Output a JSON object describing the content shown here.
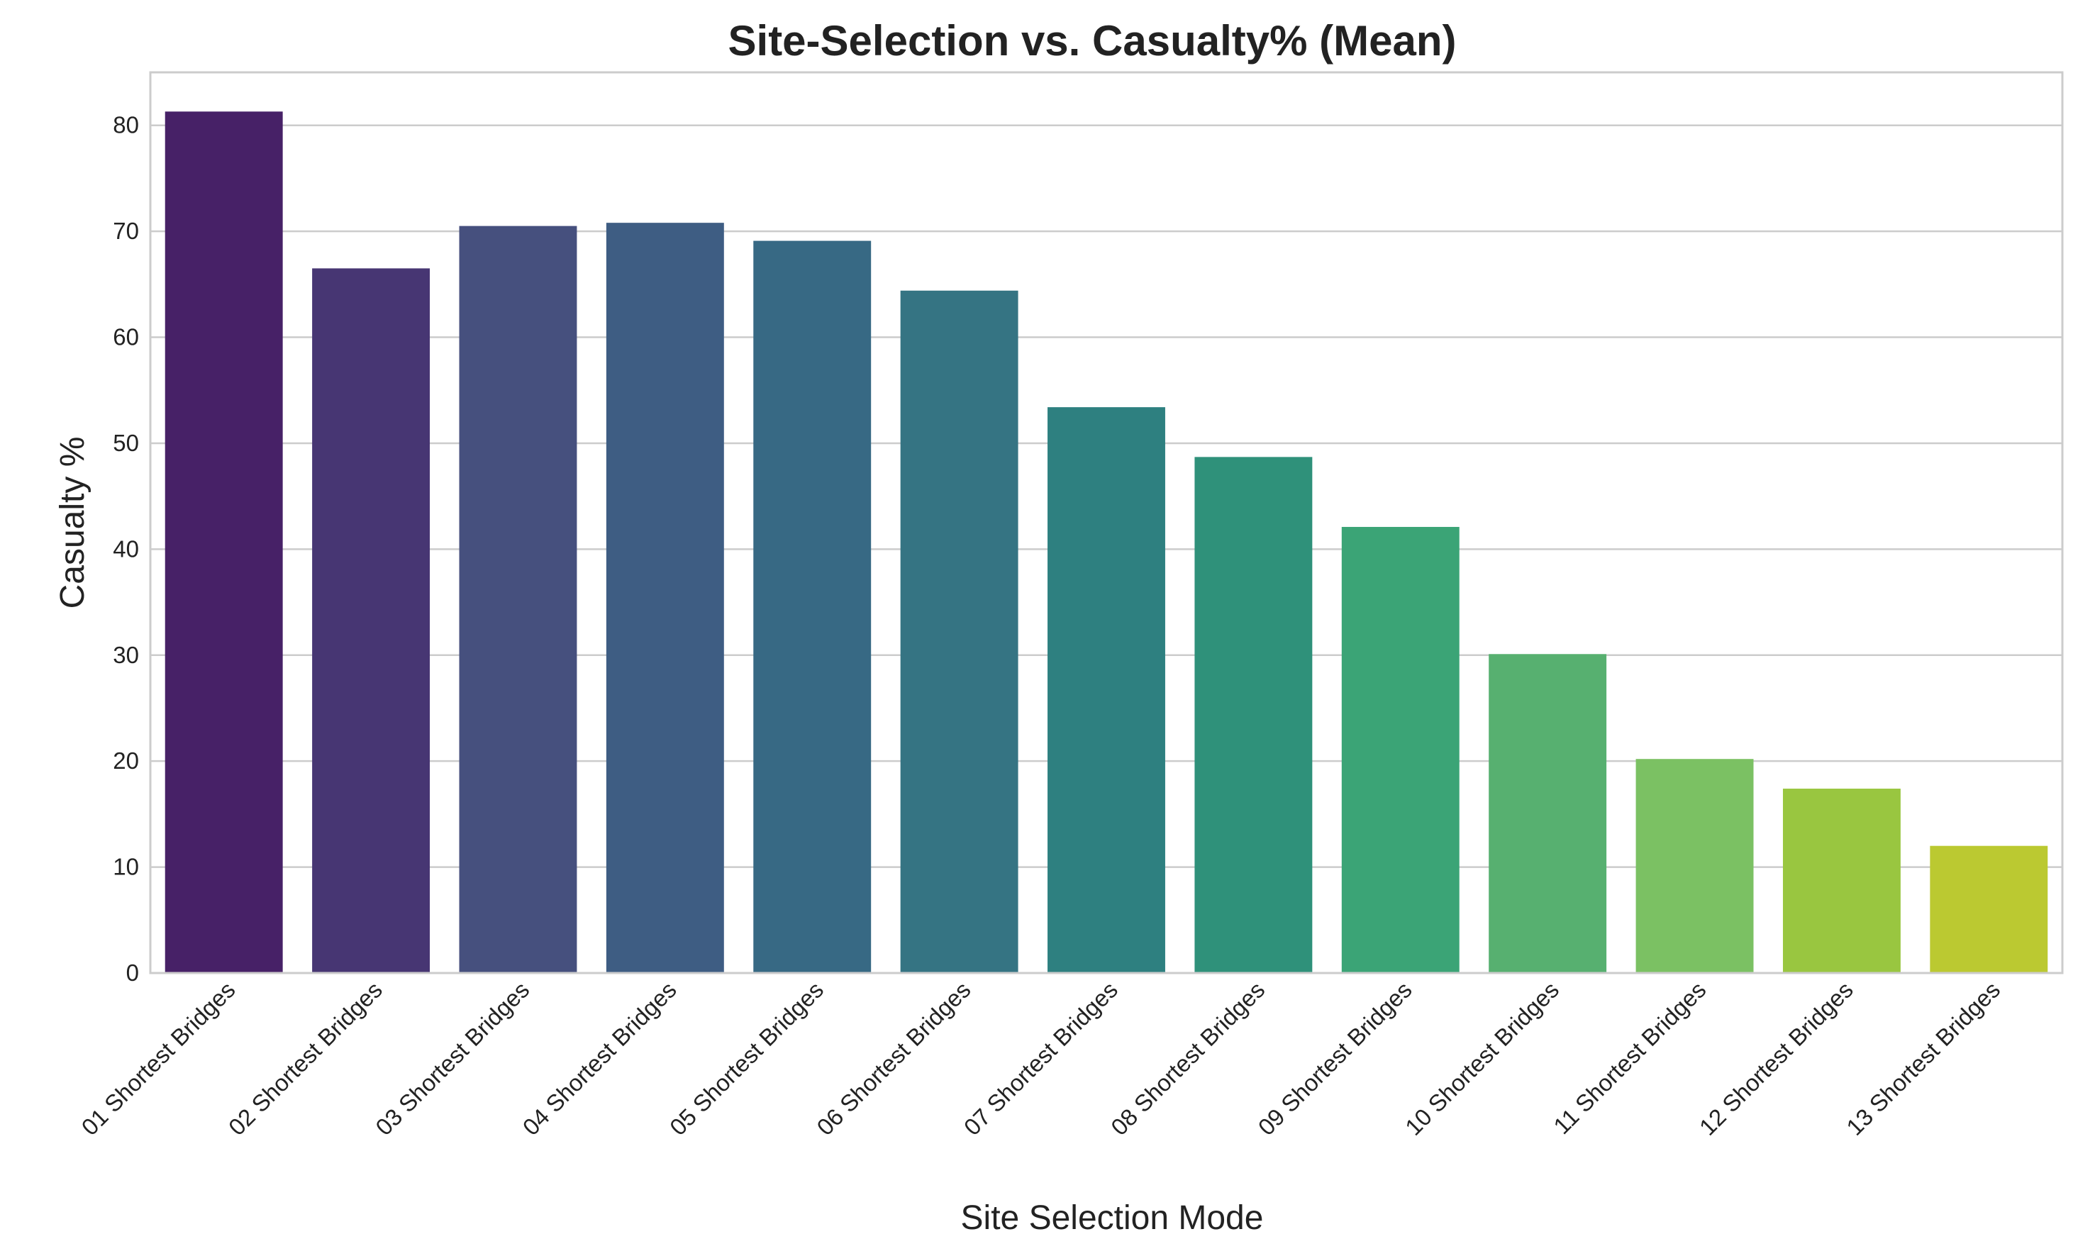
{
  "chart_data": {
    "type": "bar",
    "title": "Site-Selection vs. Casualty% (Mean)",
    "xlabel": "Site Selection Mode",
    "ylabel": "Casualty %",
    "ylim": [
      0,
      85
    ],
    "yticks": [
      0,
      10,
      20,
      30,
      40,
      50,
      60,
      70,
      80
    ],
    "grid": "horizontal",
    "categories": [
      "01 Shortest Bridges",
      "02 Shortest Bridges",
      "03 Shortest Bridges",
      "04 Shortest Bridges",
      "05 Shortest Bridges",
      "06 Shortest Bridges",
      "07 Shortest Bridges",
      "08 Shortest Bridges",
      "09 Shortest Bridges",
      "10 Shortest Bridges",
      "11 Shortest Bridges",
      "12 Shortest Bridges",
      "13 Shortest Bridges"
    ],
    "values": [
      81.3,
      66.5,
      70.5,
      70.8,
      69.1,
      64.4,
      53.4,
      48.7,
      42.1,
      30.1,
      20.2,
      17.4,
      12.0
    ],
    "colors": [
      "#472167",
      "#473673",
      "#46507e",
      "#3e5d83",
      "#376984",
      "#357483",
      "#2e8080",
      "#2f917a",
      "#3ba476",
      "#57b070",
      "#7bc163",
      "#99c640",
      "#bbc931"
    ]
  }
}
